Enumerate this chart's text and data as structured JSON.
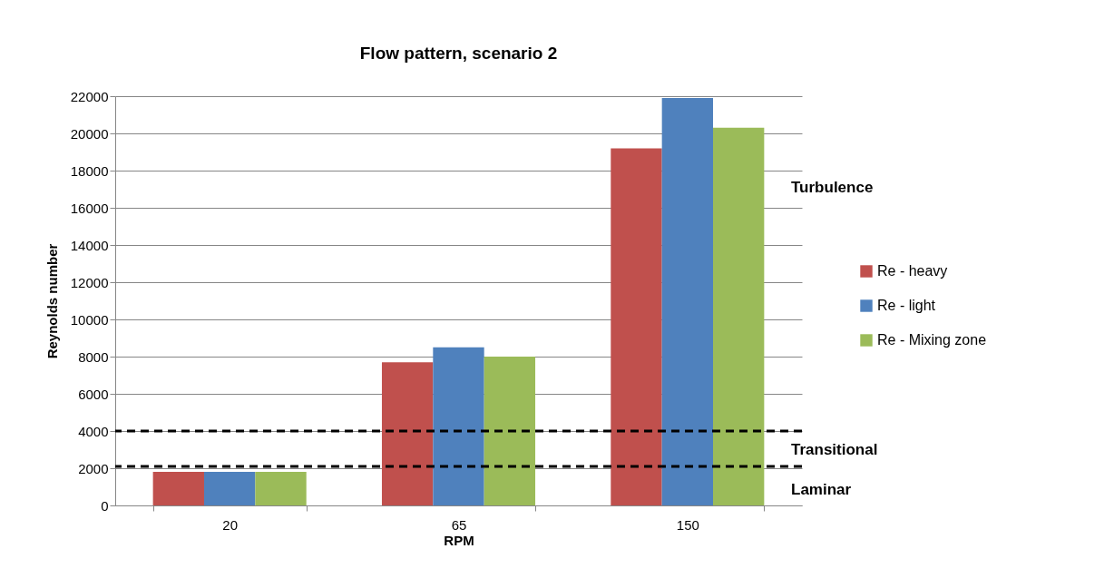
{
  "chart_data": {
    "type": "bar",
    "title": "Flow pattern, scenario 2",
    "xlabel": "RPM",
    "ylabel": "Reynolds number",
    "categories": [
      "20",
      "65",
      "150"
    ],
    "series": [
      {
        "name": "Re - heavy",
        "color": "#c0504d",
        "values": [
          1800,
          7700,
          19200
        ]
      },
      {
        "name": "Re - light",
        "color": "#4f81bd",
        "values": [
          1800,
          8500,
          21900
        ]
      },
      {
        "name": "Re - Mixing zone",
        "color": "#9bbb59",
        "values": [
          1800,
          8000,
          20300
        ]
      }
    ],
    "ylim": [
      0,
      22000
    ],
    "yticks": [
      0,
      2000,
      4000,
      6000,
      8000,
      10000,
      12000,
      14000,
      16000,
      18000,
      20000,
      22000
    ],
    "grid": "y",
    "legend": "right",
    "ref_lines": [
      {
        "axis": "y",
        "value": 4000,
        "color": "#000000",
        "line_style": "dashed"
      },
      {
        "axis": "y",
        "value": 2100,
        "color": "#000000",
        "line_style": "dashed"
      }
    ],
    "annotations": [
      "Turbulence",
      "Transitional",
      "Laminar"
    ]
  }
}
